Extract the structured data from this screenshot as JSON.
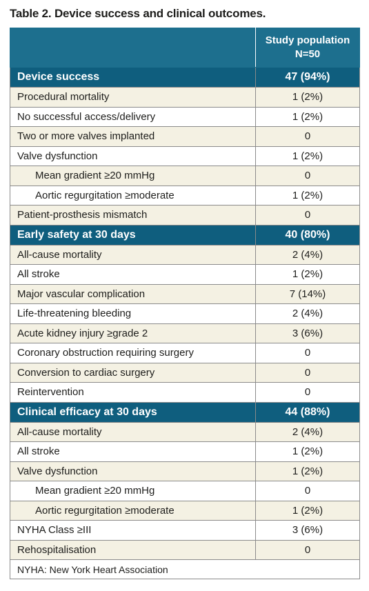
{
  "title": "Table 2. Device success and clinical outcomes.",
  "header": {
    "col_line1": "Study population",
    "col_line2": "N=50"
  },
  "sections": [
    {
      "label": "Device success",
      "value": "47 (94%)",
      "rows": [
        {
          "label": "Procedural mortality",
          "value": "1 (2%)",
          "indent": false
        },
        {
          "label": "No successful access/delivery",
          "value": "1 (2%)",
          "indent": false
        },
        {
          "label": "Two or more valves implanted",
          "value": "0",
          "indent": false
        },
        {
          "label": "Valve dysfunction",
          "value": "1 (2%)",
          "indent": false
        },
        {
          "label": "Mean gradient ≥20 mmHg",
          "value": "0",
          "indent": true
        },
        {
          "label": "Aortic regurgitation ≥moderate",
          "value": "1 (2%)",
          "indent": true
        },
        {
          "label": "Patient-prosthesis mismatch",
          "value": "0",
          "indent": false
        }
      ]
    },
    {
      "label": "Early safety at 30 days",
      "value": "40 (80%)",
      "rows": [
        {
          "label": "All-cause mortality",
          "value": "2 (4%)",
          "indent": false
        },
        {
          "label": "All stroke",
          "value": "1 (2%)",
          "indent": false
        },
        {
          "label": "Major vascular complication",
          "value": "7 (14%)",
          "indent": false
        },
        {
          "label": "Life-threatening bleeding",
          "value": "2 (4%)",
          "indent": false
        },
        {
          "label": "Acute kidney injury ≥grade 2",
          "value": "3 (6%)",
          "indent": false
        },
        {
          "label": "Coronary obstruction requiring surgery",
          "value": "0",
          "indent": false
        },
        {
          "label": "Conversion to cardiac surgery",
          "value": "0",
          "indent": false
        },
        {
          "label": "Reintervention",
          "value": "0",
          "indent": false
        }
      ]
    },
    {
      "label": "Clinical efficacy at 30 days",
      "value": "44 (88%)",
      "rows": [
        {
          "label": "All-cause mortality",
          "value": "2 (4%)",
          "indent": false
        },
        {
          "label": "All stroke",
          "value": "1 (2%)",
          "indent": false
        },
        {
          "label": "Valve dysfunction",
          "value": "1 (2%)",
          "indent": false
        },
        {
          "label": "Mean gradient ≥20 mmHg",
          "value": "0",
          "indent": true
        },
        {
          "label": "Aortic regurgitation ≥moderate",
          "value": "1 (2%)",
          "indent": true
        },
        {
          "label": "NYHA Class ≥III",
          "value": "3 (6%)",
          "indent": false
        },
        {
          "label": "Rehospitalisation",
          "value": "0",
          "indent": false
        }
      ]
    }
  ],
  "footnote": "NYHA: New York Heart Association"
}
